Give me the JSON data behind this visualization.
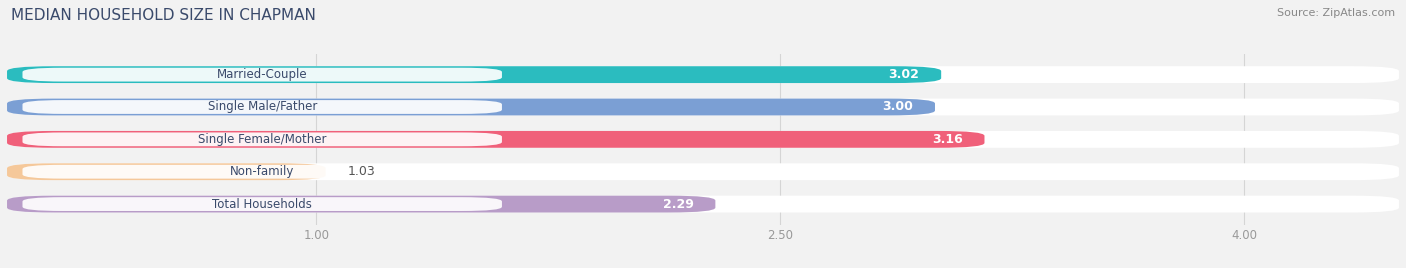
{
  "title": "MEDIAN HOUSEHOLD SIZE IN CHAPMAN",
  "source": "Source: ZipAtlas.com",
  "categories": [
    "Married-Couple",
    "Single Male/Father",
    "Single Female/Mother",
    "Non-family",
    "Total Households"
  ],
  "values": [
    3.02,
    3.0,
    3.16,
    1.03,
    2.29
  ],
  "bar_colors": [
    "#2bbcbf",
    "#7b9fd4",
    "#f0607a",
    "#f5c89a",
    "#b89cc8"
  ],
  "xlim_min": 0.0,
  "xlim_max": 4.5,
  "xticks": [
    1.0,
    2.5,
    4.0
  ],
  "xtick_labels": [
    "1.00",
    "2.50",
    "4.00"
  ],
  "title_fontsize": 11,
  "source_fontsize": 8,
  "label_fontsize": 8.5,
  "value_fontsize": 9,
  "bar_height": 0.52,
  "background_color": "#f2f2f2",
  "bar_bg_color": "#ffffff",
  "title_color": "#3a4a6b",
  "source_color": "#888888",
  "label_text_color": "#3a4a6b",
  "value_text_color_inside": "#ffffff",
  "value_text_color_outside": "#555555",
  "grid_color": "#d5d5d5"
}
